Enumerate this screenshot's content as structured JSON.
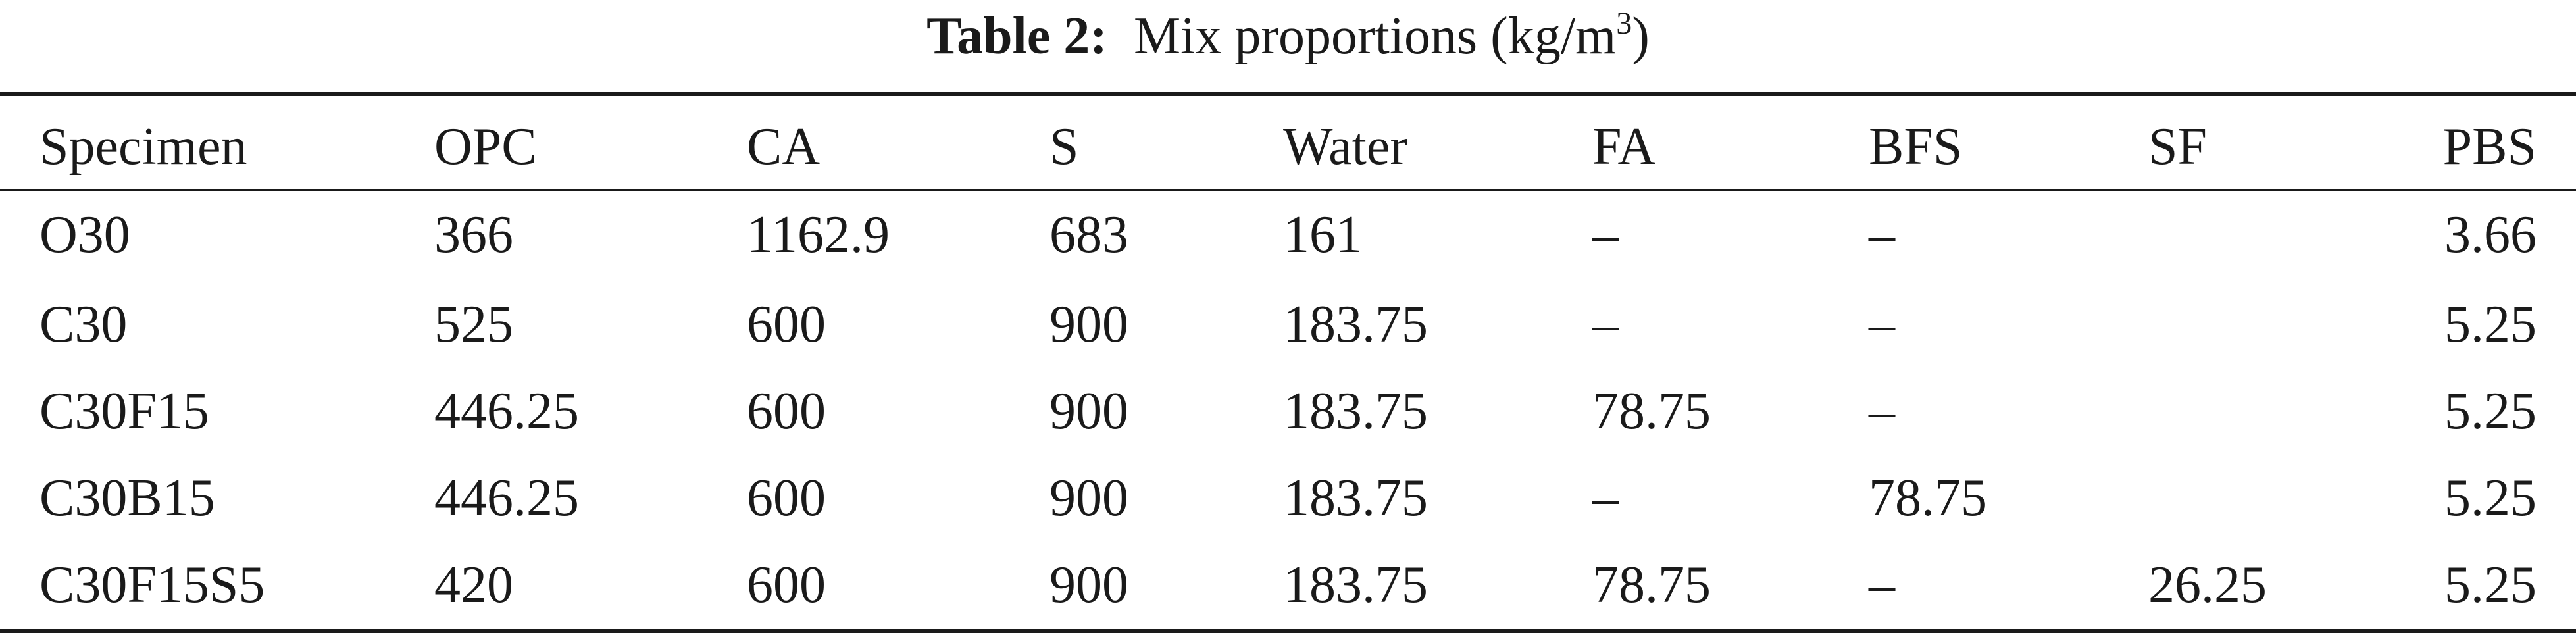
{
  "caption": {
    "label": "Table 2:",
    "text": "Mix proportions (kg/m",
    "superscript": "3",
    "close": ")"
  },
  "table": {
    "headers": [
      "Specimen",
      "OPC",
      "CA",
      "S",
      "Water",
      "FA",
      "BFS",
      "SF",
      "PBS"
    ],
    "rows": [
      [
        "O30",
        "366",
        "1162.9",
        "683",
        "161",
        "–",
        "–",
        "",
        "3.66"
      ],
      [
        "C30",
        "525",
        "600",
        "900",
        "183.75",
        "–",
        "–",
        "",
        "5.25"
      ],
      [
        "C30F15",
        "446.25",
        "600",
        "900",
        "183.75",
        "78.75",
        "–",
        "",
        "5.25"
      ],
      [
        "C30B15",
        "446.25",
        "600",
        "900",
        "183.75",
        "–",
        "78.75",
        "",
        "5.25"
      ],
      [
        "C30F15S5",
        "420",
        "600",
        "900",
        "183.75",
        "78.75",
        "–",
        "26.25",
        "5.25"
      ]
    ]
  }
}
